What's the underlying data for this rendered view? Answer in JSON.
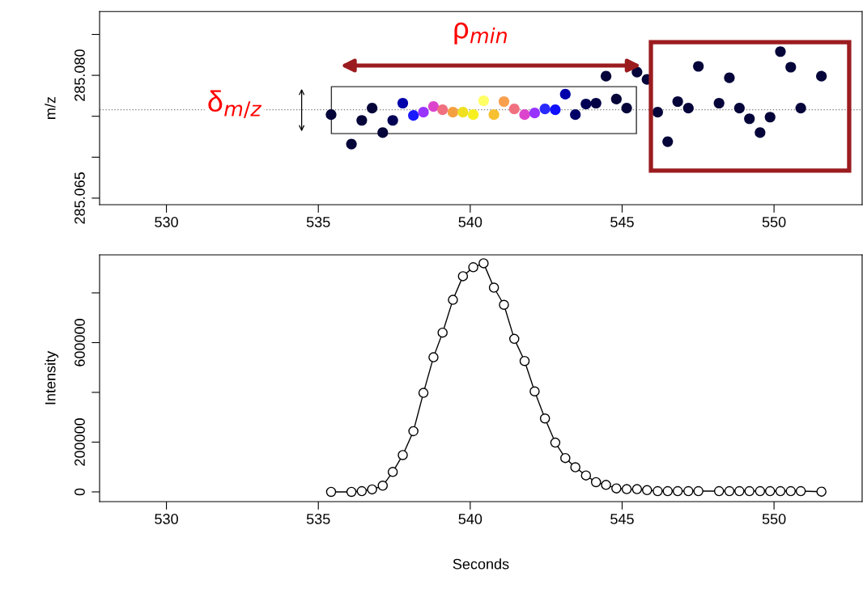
{
  "chart_data": [
    {
      "type": "scatter",
      "ylabel": "m/z",
      "marker": "circle",
      "x": [
        535.42,
        536.09,
        536.43,
        536.77,
        537.12,
        537.45,
        537.78,
        538.13,
        538.46,
        538.79,
        539.09,
        539.43,
        539.76,
        540.1,
        540.44,
        540.78,
        541.11,
        541.45,
        541.79,
        542.12,
        542.46,
        542.8,
        543.13,
        543.46,
        543.81,
        544.14,
        544.47,
        544.81,
        545.15,
        545.49,
        545.82,
        546.17,
        546.5,
        546.83,
        547.18,
        547.51,
        548.19,
        548.53,
        548.86,
        549.19,
        549.54,
        549.87,
        550.21,
        550.55,
        550.88,
        551.56
      ],
      "values": [
        285.0752,
        285.0716,
        285.0745,
        285.076,
        285.073,
        285.0745,
        285.0766,
        285.0751,
        285.0755,
        285.0762,
        285.0758,
        285.0755,
        285.0755,
        285.0752,
        285.0769,
        285.0752,
        285.0768,
        285.0759,
        285.0752,
        285.0754,
        285.0759,
        285.0758,
        285.0777,
        285.0752,
        285.0765,
        285.0766,
        285.0799,
        285.0771,
        285.076,
        285.0804,
        285.0795,
        285.0755,
        285.0719,
        285.0768,
        285.076,
        285.0811,
        285.0766,
        285.0797,
        285.076,
        285.0747,
        285.073,
        285.0749,
        285.0829,
        285.081,
        285.076,
        285.0799
      ],
      "colors": [
        "#05053a",
        "#05053a",
        "#05053a",
        "#05053a",
        "#05053a",
        "#000055",
        "#0000aa",
        "#1a1aff",
        "#9933ff",
        "#dd44cc",
        "#f07080",
        "#f5a040",
        "#f0e020",
        "#f7f020",
        "#ffff66",
        "#f7c030",
        "#f9a050",
        "#f07080",
        "#dd44cc",
        "#9933ff",
        "#2a2aff",
        "#1010ff",
        "#0000aa",
        "#000066",
        "#000055",
        "#000044",
        "#05053a",
        "#05053a",
        "#05053a",
        "#05053a",
        "#05053a",
        "#05053a",
        "#05053a",
        "#05053a",
        "#05053a",
        "#05053a",
        "#05053a",
        "#05053a",
        "#05053a",
        "#05053a",
        "#05053a",
        "#05053a",
        "#05053a",
        "#05053a",
        "#05053a",
        "#05053a"
      ],
      "xlim": [
        527.8,
        552.9
      ],
      "xticks": [
        530,
        535,
        540,
        545,
        550
      ],
      "ylim": [
        285.0642,
        285.0878
      ],
      "yticks": [
        {
          "value": 285.085,
          "label": null
        },
        {
          "value": 285.08,
          "label": "285.080"
        },
        {
          "value": 285.075,
          "label": null
        },
        {
          "value": 285.07,
          "label": null
        },
        {
          "value": 285.065,
          "label": "285.065"
        }
      ],
      "ref_lines": [
        {
          "axis": "y",
          "value": 285.0758,
          "color": "#808080",
          "line_style": "dotted"
        }
      ],
      "annotations": [
        "ρ$_{min}$",
        "δ$_{m/z}$"
      ]
    },
    {
      "type": "line",
      "xlabel": "Seconds",
      "ylabel": "Intensity",
      "marker": "circle",
      "line_style": "solid",
      "x": [
        535.42,
        536.09,
        536.43,
        536.77,
        537.12,
        537.45,
        537.78,
        538.13,
        538.46,
        538.79,
        539.09,
        539.43,
        539.76,
        540.1,
        540.44,
        540.78,
        541.11,
        541.45,
        541.79,
        542.12,
        542.46,
        542.8,
        543.13,
        543.46,
        543.81,
        544.14,
        544.47,
        544.81,
        545.15,
        545.49,
        545.82,
        546.17,
        546.5,
        546.83,
        547.18,
        547.51,
        548.19,
        548.53,
        548.86,
        549.19,
        549.54,
        549.87,
        550.21,
        550.55,
        550.88,
        551.56
      ],
      "series": [
        {
          "color": "#000000",
          "values": [
            0,
            0,
            3000,
            10000,
            25000,
            80000,
            148000,
            244000,
            398000,
            541000,
            640000,
            772000,
            867000,
            903000,
            919000,
            821000,
            752000,
            615000,
            526000,
            404000,
            295000,
            198000,
            136000,
            99000,
            66000,
            39000,
            28000,
            14000,
            11000,
            11000,
            7000,
            3000,
            3000,
            3000,
            3000,
            3000,
            3000,
            3000,
            3000,
            3000,
            3000,
            3000,
            3000,
            3000,
            3000,
            1000
          ]
        }
      ],
      "xlim": [
        527.8,
        552.9
      ],
      "xticks": [
        530,
        535,
        540,
        545,
        550
      ],
      "ylim": [
        -39000,
        953000
      ],
      "yticks": [
        0,
        200000,
        {
          "value": 400000,
          "label": null
        },
        600000,
        {
          "value": 800000,
          "label": null
        }
      ]
    }
  ]
}
